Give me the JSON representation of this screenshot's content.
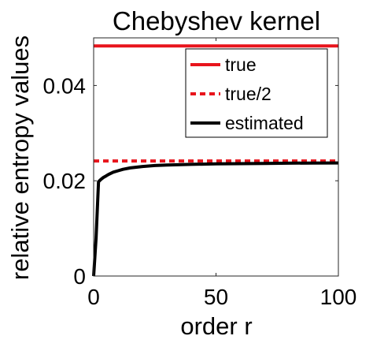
{
  "chart_data": {
    "type": "line",
    "title": "Chebyshev kernel",
    "xlabel": "order r",
    "ylabel": "relative entropy values",
    "xlim": [
      0,
      100
    ],
    "ylim": [
      0,
      0.05
    ],
    "xticks": [
      {
        "value": 0,
        "label": "0"
      },
      {
        "value": 50,
        "label": "50"
      },
      {
        "value": 100,
        "label": "100"
      }
    ],
    "yticks": [
      {
        "value": 0,
        "label": "0"
      },
      {
        "value": 0.02,
        "label": "0.02"
      },
      {
        "value": 0.04,
        "label": "0.04"
      }
    ],
    "grid": false,
    "legend_position": "top-right",
    "series": [
      {
        "name": "true",
        "color": "#e8141c",
        "style": "solid",
        "x": [
          0,
          100
        ],
        "y": [
          0.0483,
          0.0483
        ]
      },
      {
        "name": "true/2",
        "color": "#e8141c",
        "style": "dashed",
        "x": [
          0,
          100
        ],
        "y": [
          0.02415,
          0.02415
        ]
      },
      {
        "name": "estimated",
        "color": "#000000",
        "style": "solid",
        "x": [
          0,
          1,
          2,
          3,
          4,
          5,
          6,
          8,
          10,
          12,
          15,
          20,
          25,
          30,
          40,
          50,
          60,
          70,
          80,
          90,
          100
        ],
        "y": [
          0,
          0.008,
          0.0198,
          0.0203,
          0.0207,
          0.021,
          0.0213,
          0.0218,
          0.0221,
          0.0224,
          0.0227,
          0.023,
          0.0232,
          0.0233,
          0.02345,
          0.02355,
          0.0236,
          0.02365,
          0.0237,
          0.02372,
          0.02375
        ]
      }
    ]
  }
}
